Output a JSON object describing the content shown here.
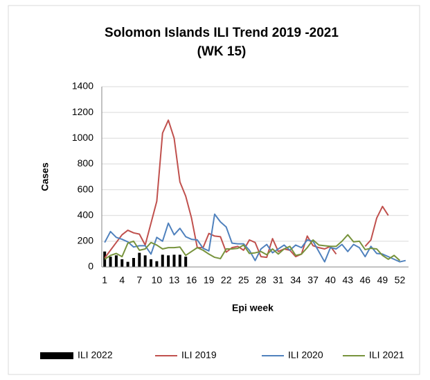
{
  "chart_data": {
    "type": "combo",
    "title": [
      "Solomon Islands ILI Trend 2019 -2021",
      "(WK 15)"
    ],
    "x_label": "Epi week",
    "y_label": "Cases",
    "categories": [
      1,
      null,
      null,
      4,
      null,
      null,
      7,
      null,
      null,
      10,
      null,
      null,
      13,
      null,
      null,
      16,
      null,
      null,
      19,
      null,
      null,
      22,
      null,
      null,
      25,
      null,
      null,
      28,
      null,
      null,
      31,
      null,
      null,
      34,
      null,
      null,
      37,
      null,
      null,
      40,
      null,
      null,
      43,
      null,
      null,
      46,
      null,
      null,
      49,
      null,
      null,
      52,
      null
    ],
    "ylim": [
      0,
      1400
    ],
    "yticks": [
      0,
      200,
      400,
      600,
      800,
      1000,
      1200,
      1400
    ],
    "grid": true,
    "legend": "bottom",
    "series": [
      {
        "name": "ILI 2022",
        "type": "bar",
        "color": "#000000",
        "values": [
          120,
          80,
          90,
          60,
          40,
          70,
          110,
          90,
          60,
          45,
          95,
          90,
          95,
          95,
          80,
          null,
          null,
          null,
          null,
          null,
          null,
          null,
          null,
          null,
          null,
          null,
          null,
          null,
          null,
          null,
          null,
          null,
          null,
          null,
          null,
          null,
          null,
          null,
          null,
          null,
          null,
          null,
          null,
          null,
          null,
          null,
          null,
          null,
          null,
          null,
          null,
          null,
          null
        ]
      },
      {
        "name": "ILI 2019",
        "type": "line",
        "color": "#c0504d",
        "values": [
          70,
          130,
          190,
          250,
          285,
          265,
          255,
          170,
          340,
          510,
          1040,
          1140,
          1000,
          660,
          550,
          380,
          150,
          150,
          260,
          240,
          235,
          115,
          150,
          160,
          130,
          210,
          190,
          80,
          75,
          220,
          120,
          140,
          130,
          80,
          100,
          240,
          165,
          150,
          140,
          160,
          100,
          null,
          null,
          null,
          null,
          160,
          210,
          380,
          470,
          400,
          null,
          null,
          null
        ]
      },
      {
        "name": "ILI 2020",
        "type": "line",
        "color": "#4f81bd",
        "values": [
          190,
          275,
          230,
          215,
          195,
          155,
          165,
          165,
          100,
          230,
          200,
          340,
          250,
          300,
          235,
          215,
          210,
          145,
          125,
          410,
          350,
          310,
          185,
          180,
          180,
          130,
          50,
          140,
          175,
          110,
          140,
          170,
          130,
          170,
          150,
          210,
          200,
          120,
          40,
          150,
          140,
          175,
          120,
          175,
          150,
          80,
          160,
          105,
          100,
          80,
          60,
          40,
          50
        ]
      },
      {
        "name": "ILI 2021",
        "type": "line",
        "color": "#77933c",
        "values": [
          60,
          90,
          105,
          80,
          185,
          200,
          130,
          140,
          190,
          170,
          140,
          150,
          150,
          155,
          90,
          120,
          150,
          130,
          100,
          75,
          65,
          140,
          140,
          145,
          170,
          105,
          110,
          120,
          95,
          140,
          100,
          140,
          160,
          90,
          100,
          150,
          210,
          170,
          165,
          160,
          160,
          200,
          250,
          195,
          200,
          135,
          145,
          140,
          90,
          60,
          90,
          50,
          null
        ]
      }
    ]
  }
}
